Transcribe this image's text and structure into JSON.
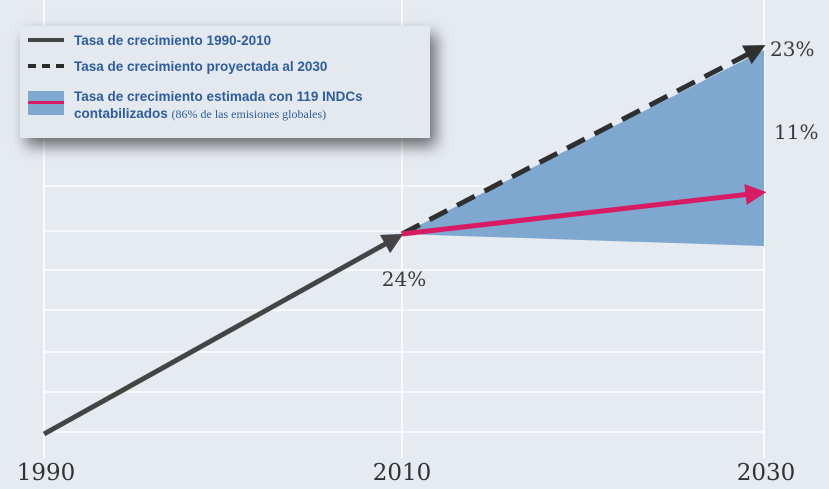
{
  "chart_data": {
    "type": "line",
    "x": [
      "1990",
      "2010",
      "2030"
    ],
    "grid": true,
    "series": [
      {
        "name": "Tasa de crecimiento 1990-2010",
        "from": "1990",
        "to": "2010",
        "growth_pct": 24,
        "style": "solid",
        "color": "#444444"
      },
      {
        "name": "Tasa de crecimiento proyectada al 2030",
        "from": "2010",
        "to": "2030",
        "growth_pct": 23,
        "style": "dashed",
        "color": "#2f2f2f"
      },
      {
        "name": "Tasa de crecimiento estimada con 119 INDCs contabilizados",
        "from": "2010",
        "to": "2030",
        "growth_pct": 11,
        "style": "solid",
        "color": "#d81b63"
      }
    ],
    "band": {
      "name": "Tasa de crecimiento estimada con 119 INDCs contabilizados",
      "from": "2010",
      "to": "2030",
      "color": "#7ea8d0"
    },
    "annotations": [
      "24%",
      "23%",
      "11%"
    ]
  },
  "legend": {
    "items": [
      {
        "label": "Tasa de crecimiento 1990-2010",
        "note": ""
      },
      {
        "label": "Tasa de crecimiento proyectada al 2030",
        "note": ""
      },
      {
        "label": "Tasa de crecimiento estimada con 119 INDCs contabilizados",
        "note": "(86% de las emisiones globales)"
      }
    ]
  }
}
